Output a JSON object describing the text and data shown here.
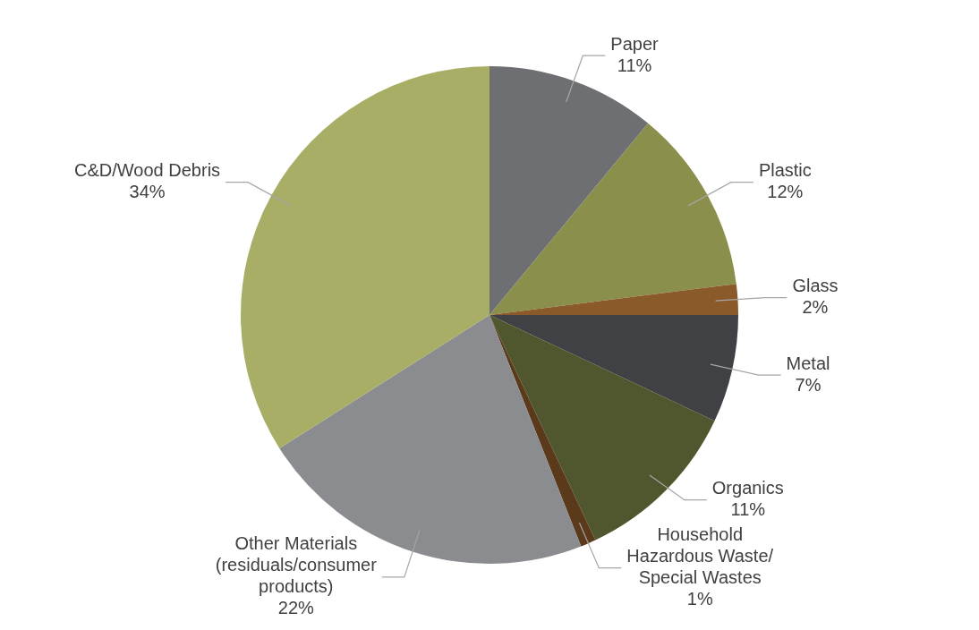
{
  "chart_data": {
    "type": "pie",
    "categories": [
      "Paper",
      "Plastic",
      "Glass",
      "Metal",
      "Organics",
      "Household Hazardous Waste/ Special Wastes",
      "Other Materials (residuals/consumer products)",
      "C&D/Wood Debris"
    ],
    "values": [
      11,
      12,
      2,
      7,
      11,
      1,
      22,
      34
    ],
    "value_labels": [
      "11%",
      "12%",
      "2%",
      "7%",
      "11%",
      "1%",
      "22%",
      "34%"
    ],
    "colors": [
      "#6e6f73",
      "#8a8f4c",
      "#8b5a2b",
      "#404144",
      "#50562e",
      "#5a3a1a",
      "#8b8c90",
      "#a8ae66"
    ],
    "legend": false
  }
}
